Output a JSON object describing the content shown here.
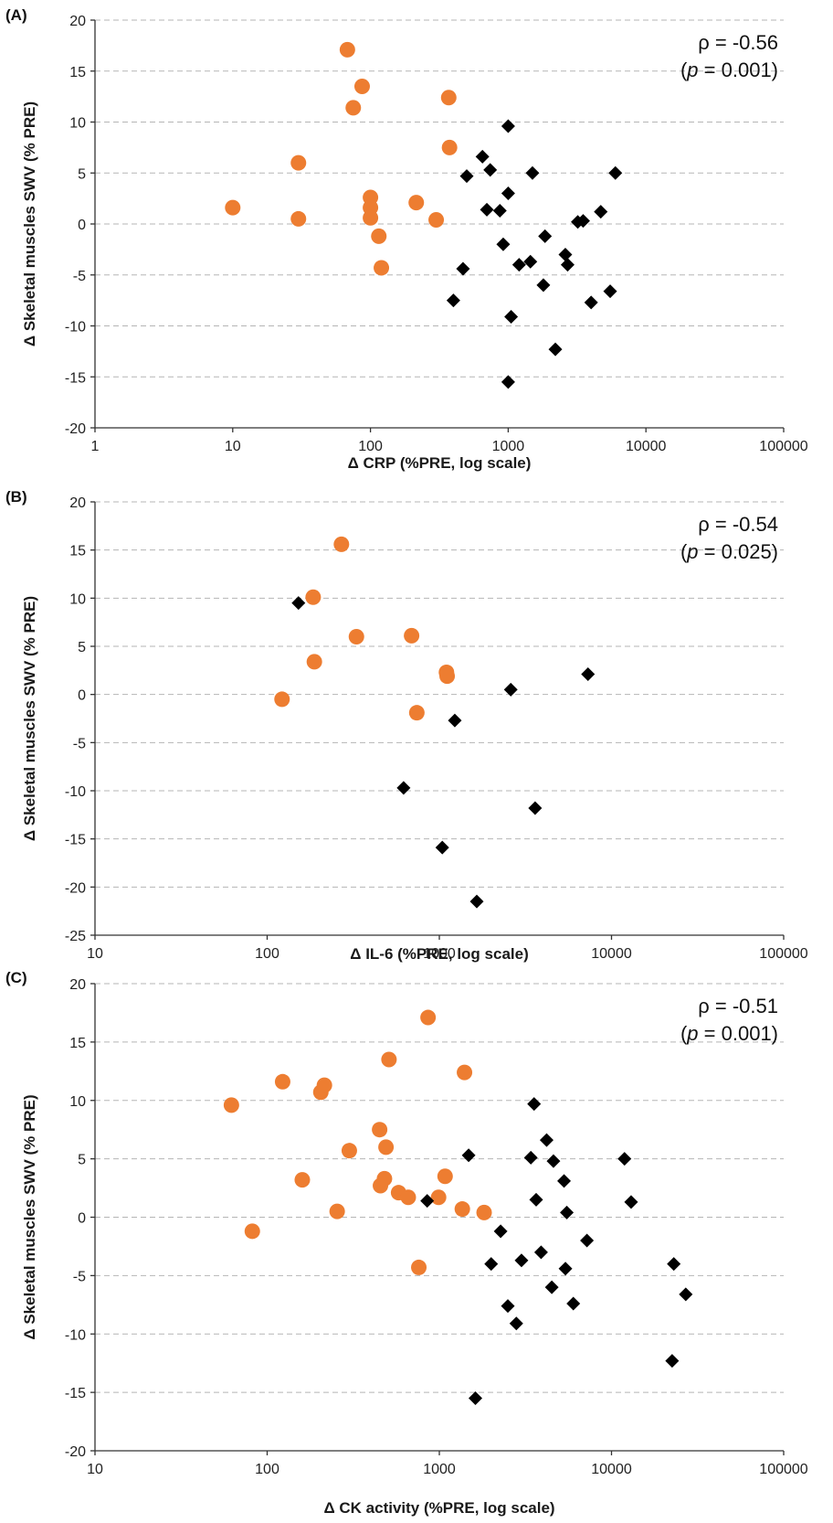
{
  "chart_data": [
    {
      "type": "scatter",
      "panel_label": "(A)",
      "xlabel": "Δ CRP (%PRE, log scale)",
      "ylabel": "Δ Skeletal muscles SWV (% PRE)",
      "xscale": "log",
      "xlim": [
        1,
        100000
      ],
      "ylim": [
        -20,
        20
      ],
      "xticks": [
        "1",
        "10",
        "100",
        "1000",
        "10000",
        "100000"
      ],
      "yticks": [
        "20",
        "15",
        "10",
        "5",
        "0",
        "-5",
        "-10",
        "-15",
        "-20"
      ],
      "grid": "horizontal dashed",
      "annotation": {
        "rho": "ρ = -0.56",
        "p_open": "(",
        "p_sym": "p",
        "p_rest": " = 0.001)"
      },
      "colors": {
        "orange": "#ED7D31",
        "black": "#000000"
      },
      "series": [
        {
          "marker": "circle",
          "color": "orange",
          "points": [
            [
              10,
              1.6
            ],
            [
              30,
              6
            ],
            [
              30,
              0.5
            ],
            [
              68,
              17.1
            ],
            [
              75,
              11.4
            ],
            [
              87,
              13.5
            ],
            [
              100,
              2.6
            ],
            [
              100,
              1.6
            ],
            [
              100,
              0.6
            ],
            [
              115,
              -1.2
            ],
            [
              120,
              -4.3
            ],
            [
              215,
              2.1
            ],
            [
              300,
              0.4
            ],
            [
              370,
              12.4
            ],
            [
              375,
              7.5
            ]
          ]
        },
        {
          "marker": "diamond",
          "color": "black",
          "points": [
            [
              400,
              -7.5
            ],
            [
              470,
              -4.4
            ],
            [
              500,
              4.7
            ],
            [
              650,
              6.6
            ],
            [
              700,
              1.4
            ],
            [
              740,
              5.3
            ],
            [
              870,
              1.3
            ],
            [
              920,
              -2.0
            ],
            [
              1000,
              9.6
            ],
            [
              1000,
              3.0
            ],
            [
              1050,
              -9.1
            ],
            [
              1000,
              -15.5
            ],
            [
              1200,
              -4.0
            ],
            [
              1450,
              -3.7
            ],
            [
              1500,
              5.0
            ],
            [
              1800,
              -6.0
            ],
            [
              1850,
              -1.2
            ],
            [
              2200,
              -12.3
            ],
            [
              2600,
              -3.0
            ],
            [
              2700,
              -4.0
            ],
            [
              3200,
              0.2
            ],
            [
              3500,
              0.3
            ],
            [
              4000,
              -7.7
            ],
            [
              4700,
              1.2
            ],
            [
              5500,
              -6.6
            ],
            [
              6000,
              5.0
            ]
          ]
        }
      ]
    },
    {
      "type": "scatter",
      "panel_label": "(B)",
      "xlabel": "Δ IL-6 (%PRE, log scale)",
      "ylabel": "Δ Skeletal muscles SWV (% PRE)",
      "xscale": "log",
      "xlim": [
        10,
        100000
      ],
      "ylim": [
        -25,
        20
      ],
      "xticks": [
        "10",
        "100",
        "1000",
        "10000",
        "100000"
      ],
      "yticks": [
        "20",
        "15",
        "10",
        "5",
        "0",
        "-5",
        "-10",
        "-15",
        "-20",
        "-25"
      ],
      "grid": "horizontal dashed",
      "annotation": {
        "rho": "ρ = -0.54",
        "p_open": "(",
        "p_sym": "p",
        "p_rest": " = 0.025)"
      },
      "colors": {
        "orange": "#ED7D31",
        "black": "#000000"
      },
      "series": [
        {
          "marker": "circle",
          "color": "orange",
          "points": [
            [
              122,
              -0.5
            ],
            [
              185,
              10.1
            ],
            [
              188,
              3.4
            ],
            [
              270,
              15.6
            ],
            [
              330,
              6.0
            ],
            [
              690,
              6.1
            ],
            [
              740,
              -1.9
            ],
            [
              1100,
              2.3
            ],
            [
              1110,
              1.9
            ]
          ]
        },
        {
          "marker": "diamond",
          "color": "black",
          "points": [
            [
              152,
              9.5
            ],
            [
              620,
              -9.7
            ],
            [
              1040,
              -15.9
            ],
            [
              1230,
              -2.7
            ],
            [
              1650,
              -21.5
            ],
            [
              2600,
              0.5
            ],
            [
              3600,
              -11.8
            ],
            [
              7300,
              2.1
            ]
          ]
        }
      ]
    },
    {
      "type": "scatter",
      "panel_label": "(C)",
      "xlabel": "Δ CK activity (%PRE, log scale)",
      "ylabel": "Δ Skeletal muscles SWV (% PRE)",
      "xscale": "log",
      "xlim": [
        10,
        100000
      ],
      "ylim": [
        -20,
        20
      ],
      "xticks": [
        "10",
        "100",
        "1000",
        "10000",
        "100000"
      ],
      "yticks": [
        "20",
        "15",
        "10",
        "5",
        "0",
        "-5",
        "-10",
        "-15",
        "-20"
      ],
      "grid": "horizontal dashed",
      "annotation": {
        "rho": "ρ = -0.51",
        "p_open": "(",
        "p_sym": "p",
        "p_rest": " = 0.001)"
      },
      "colors": {
        "orange": "#ED7D31",
        "black": "#000000"
      },
      "series": [
        {
          "marker": "circle",
          "color": "orange",
          "points": [
            [
              62,
              9.6
            ],
            [
              82,
              -1.2
            ],
            [
              123,
              11.6
            ],
            [
              160,
              3.2
            ],
            [
              205,
              10.7
            ],
            [
              215,
              11.3
            ],
            [
              255,
              0.5
            ],
            [
              300,
              5.7
            ],
            [
              450,
              7.5
            ],
            [
              455,
              2.7
            ],
            [
              480,
              3.3
            ],
            [
              490,
              6.0
            ],
            [
              510,
              13.5
            ],
            [
              580,
              2.1
            ],
            [
              660,
              1.7
            ],
            [
              760,
              -4.3
            ],
            [
              860,
              17.1
            ],
            [
              990,
              1.7
            ],
            [
              1080,
              3.5
            ],
            [
              1360,
              0.7
            ],
            [
              1400,
              12.4
            ],
            [
              1820,
              0.4
            ]
          ]
        },
        {
          "marker": "diamond",
          "color": "black",
          "points": [
            [
              850,
              1.4
            ],
            [
              1480,
              5.3
            ],
            [
              1620,
              -15.5
            ],
            [
              2000,
              -4.0
            ],
            [
              2270,
              -1.2
            ],
            [
              2500,
              -7.6
            ],
            [
              2800,
              -9.1
            ],
            [
              3000,
              -3.7
            ],
            [
              3400,
              5.1
            ],
            [
              3550,
              9.7
            ],
            [
              3650,
              1.5
            ],
            [
              3900,
              -3.0
            ],
            [
              4200,
              6.6
            ],
            [
              4500,
              -6.0
            ],
            [
              4600,
              4.8
            ],
            [
              5300,
              3.1
            ],
            [
              5400,
              -4.4
            ],
            [
              5500,
              0.4
            ],
            [
              6000,
              -7.4
            ],
            [
              7200,
              -2.0
            ],
            [
              11900,
              5.0
            ],
            [
              13000,
              1.3
            ],
            [
              22500,
              -12.3
            ],
            [
              23000,
              -4.0
            ],
            [
              27000,
              -6.6
            ]
          ]
        }
      ]
    }
  ]
}
